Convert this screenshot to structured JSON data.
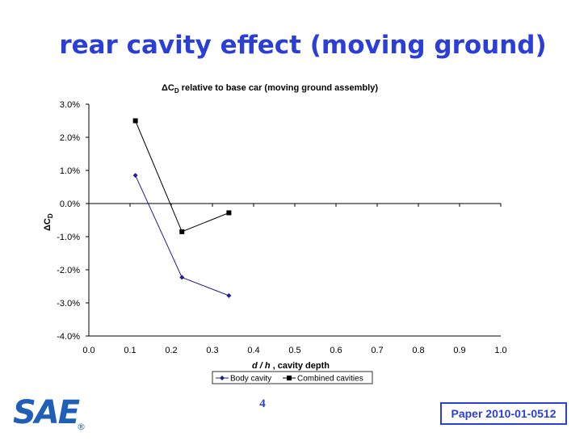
{
  "slide": {
    "title": "rear cavity effect (moving ground)",
    "page_number": "4",
    "paper_ref": "Paper 2010-01-0512",
    "logo_text": "SAE",
    "logo_mark": "®"
  },
  "colors": {
    "title": "#2b3fd6",
    "body_series": "#1f1f8f",
    "combined_series": "#000000",
    "logo": "#1f5fb8"
  },
  "chart_data": {
    "type": "line",
    "title_delta": "Δ",
    "title_main": "C",
    "title_sub": "D",
    "title_rest": " relative to base car (moving ground assembly)",
    "xlabel_italic": "d / h",
    "xlabel_rest": " , cavity depth",
    "ylabel_delta": "Δ",
    "ylabel_main": "C",
    "ylabel_sub": "D",
    "xlim": [
      0.0,
      1.0
    ],
    "ylim": [
      -0.04,
      0.03
    ],
    "x_ticks": [
      "0.0",
      "0.1",
      "0.2",
      "0.3",
      "0.4",
      "0.5",
      "0.6",
      "0.7",
      "0.8",
      "0.9",
      "1.0"
    ],
    "x_tick_values": [
      0.0,
      0.1,
      0.2,
      0.3,
      0.4,
      0.5,
      0.6,
      0.7,
      0.8,
      0.9,
      1.0
    ],
    "y_ticks": [
      "3.0%",
      "2.0%",
      "1.0%",
      "0.0%",
      "-1.0%",
      "-2.0%",
      "-3.0%",
      "-4.0%"
    ],
    "y_tick_values": [
      0.03,
      0.02,
      0.01,
      0.0,
      -0.01,
      -0.02,
      -0.03,
      -0.04
    ],
    "grid": false,
    "legend_position": "bottom",
    "series": [
      {
        "name": "Body cavity",
        "marker": "diamond",
        "x": [
          0.113,
          0.226,
          0.34
        ],
        "y": [
          0.0085,
          -0.0223,
          -0.0278
        ]
      },
      {
        "name": "Combined cavities",
        "marker": "square",
        "x": [
          0.113,
          0.226,
          0.34
        ],
        "y": [
          0.025,
          -0.0085,
          -0.0028
        ]
      }
    ]
  }
}
